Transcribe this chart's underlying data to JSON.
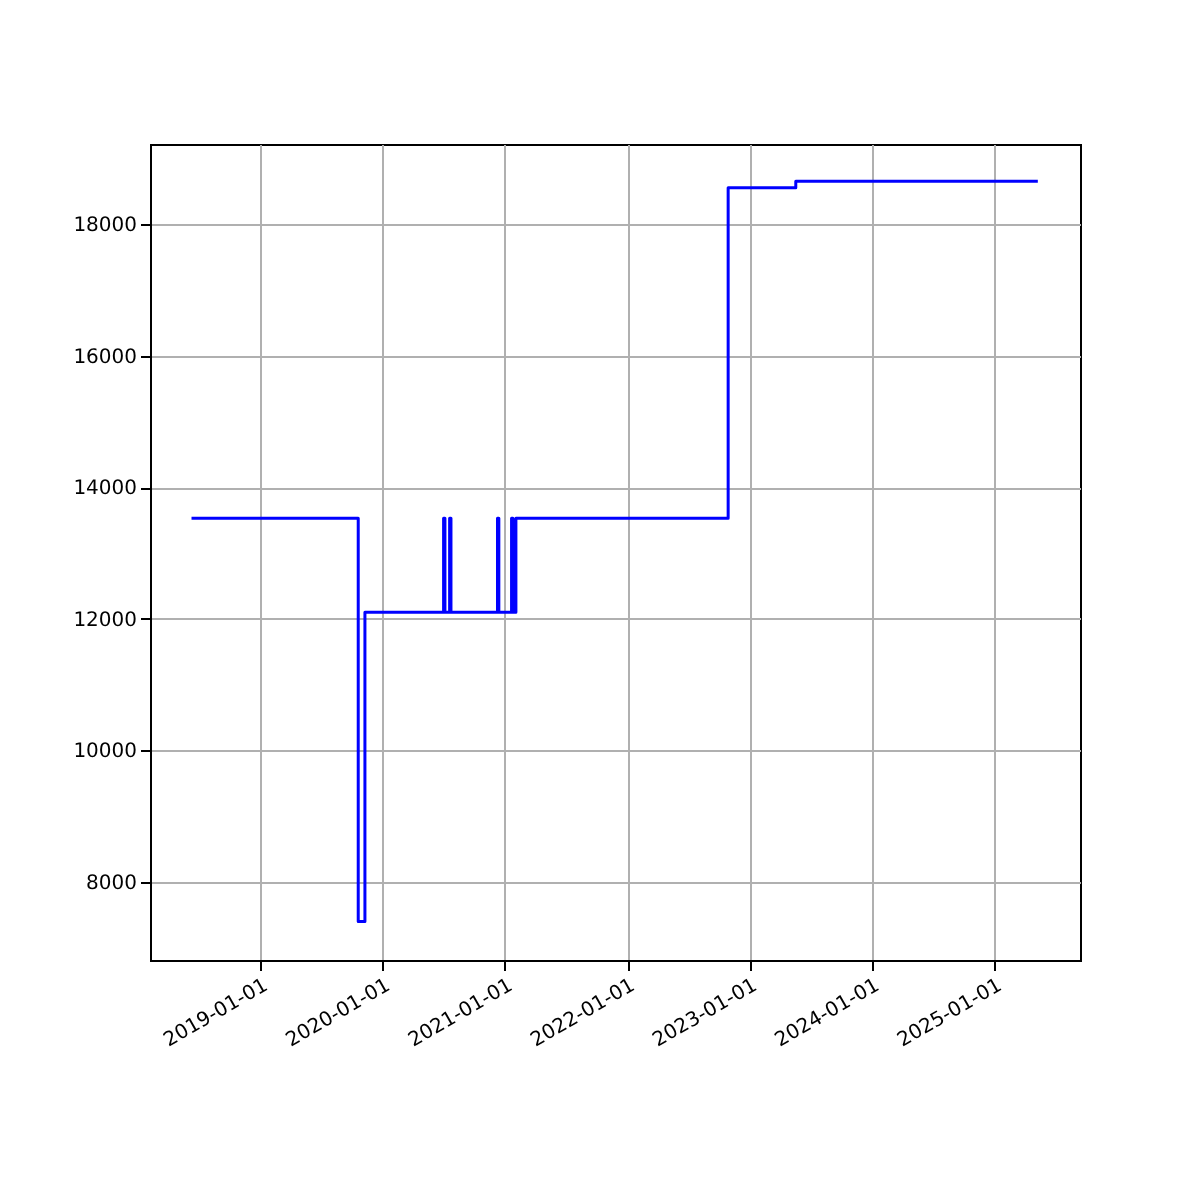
{
  "chart_data": {
    "type": "step",
    "x": [
      "2018-06-10",
      "2019-10-21",
      "2019-11-10",
      "2020-07-02",
      "2020-07-06",
      "2020-07-20",
      "2020-07-24",
      "2020-12-10",
      "2020-12-14",
      "2021-01-21",
      "2021-01-25",
      "2021-02-03",
      "2022-10-30",
      "2023-05-20",
      "2025-05-12"
    ],
    "series": [
      {
        "color": "#0000ff",
        "values": [
          13530,
          7400,
          12100,
          13530,
          12100,
          13530,
          12100,
          13530,
          12100,
          13530,
          12100,
          13530,
          18550,
          18650,
          18650
        ]
      }
    ],
    "xlim": [
      "2018-02-06",
      "2025-09-15"
    ],
    "xticks": [
      "2019-01-01",
      "2020-01-01",
      "2021-01-01",
      "2022-01-01",
      "2023-01-01",
      "2024-01-01",
      "2025-01-01"
    ],
    "ylim": [
      6815,
      19216
    ],
    "yticks": [
      8000,
      10000,
      12000,
      14000,
      16000,
      18000
    ],
    "grid": true
  }
}
